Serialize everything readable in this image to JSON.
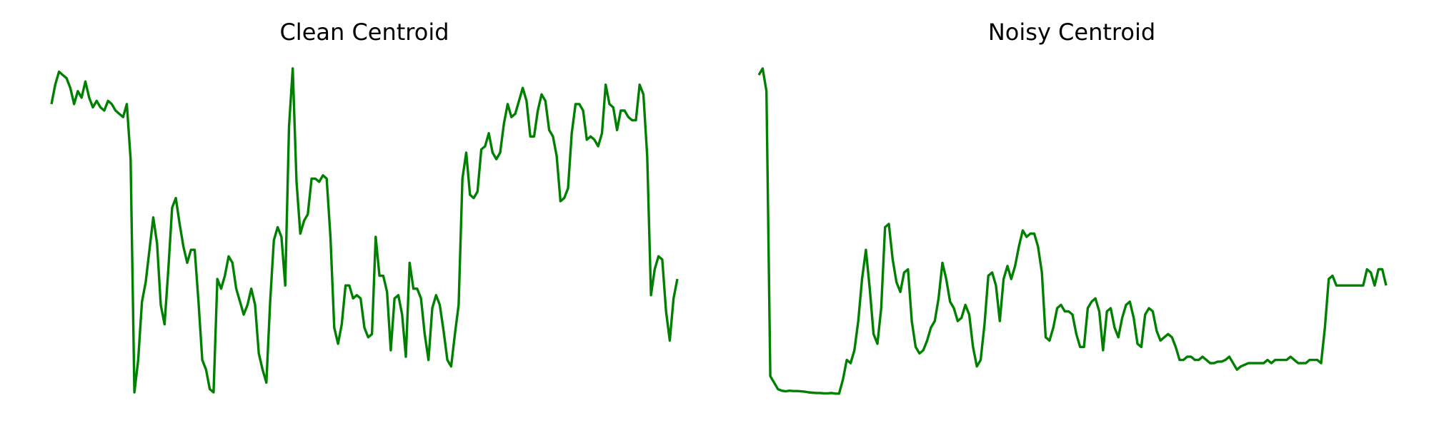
{
  "figure": {
    "line_color": "#008000"
  },
  "chart_data": [
    {
      "type": "line",
      "title": "Clean Centroid",
      "axes_visible": false,
      "grid": false,
      "ylim": [
        0,
        1
      ],
      "series": [
        {
          "color": "#008000",
          "values": [
            0.89,
            0.95,
            0.99,
            0.98,
            0.97,
            0.94,
            0.89,
            0.93,
            0.91,
            0.96,
            0.91,
            0.88,
            0.9,
            0.88,
            0.87,
            0.9,
            0.89,
            0.87,
            0.86,
            0.85,
            0.89,
            0.72,
            0.0,
            0.1,
            0.28,
            0.34,
            0.44,
            0.54,
            0.46,
            0.27,
            0.21,
            0.38,
            0.57,
            0.6,
            0.52,
            0.45,
            0.4,
            0.44,
            0.44,
            0.28,
            0.1,
            0.07,
            0.01,
            0.0,
            0.35,
            0.32,
            0.36,
            0.42,
            0.4,
            0.32,
            0.28,
            0.24,
            0.27,
            0.32,
            0.27,
            0.12,
            0.07,
            0.03,
            0.28,
            0.47,
            0.51,
            0.48,
            0.33,
            0.82,
            1.0,
            0.65,
            0.49,
            0.53,
            0.55,
            0.66,
            0.66,
            0.65,
            0.67,
            0.66,
            0.48,
            0.2,
            0.15,
            0.21,
            0.33,
            0.33,
            0.29,
            0.3,
            0.29,
            0.2,
            0.17,
            0.18,
            0.48,
            0.36,
            0.36,
            0.31,
            0.13,
            0.29,
            0.3,
            0.24,
            0.11,
            0.4,
            0.32,
            0.32,
            0.29,
            0.18,
            0.1,
            0.26,
            0.3,
            0.27,
            0.19,
            0.1,
            0.08,
            0.18,
            0.27,
            0.66,
            0.74,
            0.61,
            0.6,
            0.62,
            0.75,
            0.76,
            0.8,
            0.74,
            0.72,
            0.74,
            0.83,
            0.89,
            0.85,
            0.86,
            0.9,
            0.94,
            0.9,
            0.79,
            0.79,
            0.87,
            0.92,
            0.9,
            0.81,
            0.79,
            0.73,
            0.59,
            0.6,
            0.63,
            0.8,
            0.89,
            0.89,
            0.87,
            0.78,
            0.79,
            0.78,
            0.76,
            0.8,
            0.95,
            0.89,
            0.88,
            0.81,
            0.87,
            0.87,
            0.85,
            0.84,
            0.84,
            0.95,
            0.92,
            0.73,
            0.3,
            0.38,
            0.42,
            0.41,
            0.25,
            0.16,
            0.29,
            0.35
          ]
        }
      ]
    },
    {
      "type": "line",
      "title": "Noisy Centroid",
      "axes_visible": false,
      "grid": false,
      "ylim": [
        0,
        1
      ],
      "series": [
        {
          "color": "#008000",
          "values": [
            0.98,
            1.0,
            0.93,
            0.05,
            0.03,
            0.01,
            0.005,
            0.003,
            0.005,
            0.004,
            0.004,
            0.003,
            0.002,
            0.0,
            -0.001,
            -0.002,
            -0.002,
            -0.003,
            -0.003,
            -0.002,
            -0.004,
            -0.004,
            0.04,
            0.1,
            0.09,
            0.13,
            0.22,
            0.35,
            0.44,
            0.32,
            0.18,
            0.15,
            0.26,
            0.51,
            0.52,
            0.41,
            0.34,
            0.31,
            0.37,
            0.38,
            0.22,
            0.14,
            0.12,
            0.13,
            0.16,
            0.2,
            0.22,
            0.29,
            0.4,
            0.35,
            0.28,
            0.26,
            0.22,
            0.23,
            0.27,
            0.24,
            0.14,
            0.08,
            0.1,
            0.21,
            0.36,
            0.37,
            0.33,
            0.22,
            0.35,
            0.39,
            0.35,
            0.39,
            0.45,
            0.5,
            0.48,
            0.49,
            0.49,
            0.45,
            0.37,
            0.17,
            0.16,
            0.2,
            0.26,
            0.27,
            0.25,
            0.25,
            0.24,
            0.18,
            0.14,
            0.14,
            0.26,
            0.28,
            0.29,
            0.25,
            0.13,
            0.25,
            0.26,
            0.2,
            0.17,
            0.23,
            0.27,
            0.28,
            0.23,
            0.15,
            0.14,
            0.24,
            0.26,
            0.25,
            0.19,
            0.16,
            0.17,
            0.18,
            0.17,
            0.14,
            0.1,
            0.1,
            0.11,
            0.11,
            0.1,
            0.1,
            0.11,
            0.1,
            0.09,
            0.09,
            0.095,
            0.095,
            0.1,
            0.11,
            0.09,
            0.07,
            0.08,
            0.085,
            0.09,
            0.09,
            0.09,
            0.09,
            0.09,
            0.1,
            0.09,
            0.1,
            0.1,
            0.1,
            0.1,
            0.11,
            0.1,
            0.09,
            0.09,
            0.09,
            0.1,
            0.1,
            0.1,
            0.09,
            0.2,
            0.35,
            0.36,
            0.33,
            0.33,
            0.33,
            0.33,
            0.33,
            0.33,
            0.33,
            0.33,
            0.38,
            0.37,
            0.33,
            0.38,
            0.38,
            0.33
          ]
        }
      ]
    }
  ]
}
